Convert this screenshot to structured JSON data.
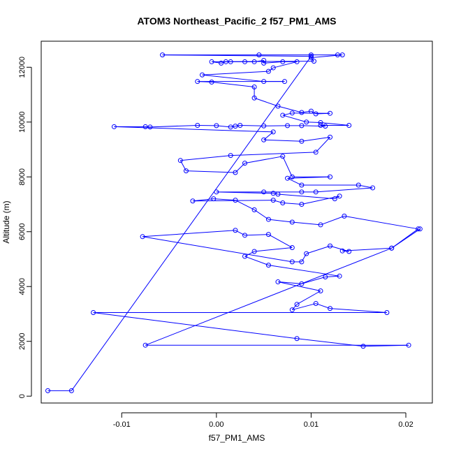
{
  "chart_data": {
    "type": "line",
    "title": "ATOM3 Northeast_Pacific_2 f57_PM1_AMS",
    "xlabel": "f57_PM1_AMS",
    "ylabel": "Altitude (m)",
    "xlim": [
      -0.0185,
      0.0228
    ],
    "ylim": [
      -250,
      12950
    ],
    "xticks": [
      -0.01,
      0.0,
      0.01,
      0.02
    ],
    "xtick_labels": [
      "-0.01",
      "0.00",
      "0.01",
      "0.02"
    ],
    "yticks": [
      0,
      2000,
      4000,
      6000,
      8000,
      10000,
      12000
    ],
    "ytick_labels": [
      "0",
      "2000",
      "4000",
      "6000",
      "8000",
      "10000",
      "12000"
    ],
    "grid": false,
    "legend": "none",
    "series": [
      {
        "color": "#0000ff",
        "marker": "open-circle",
        "points": [
          [
            -0.0178,
            200
          ],
          [
            -0.0153,
            200
          ],
          [
            0.01,
            12400
          ],
          [
            -0.0057,
            12450
          ],
          [
            0.0045,
            12450
          ],
          [
            0.01,
            12450
          ],
          [
            0.0128,
            12450
          ],
          [
            0.0133,
            12450
          ],
          [
            0.01,
            12350
          ],
          [
            0.0103,
            12220
          ],
          [
            -0.0005,
            12200
          ],
          [
            0.0005,
            12150
          ],
          [
            0.001,
            12200
          ],
          [
            0.0015,
            12200
          ],
          [
            0.003,
            12200
          ],
          [
            0.004,
            12200
          ],
          [
            0.005,
            12250
          ],
          [
            0.005,
            12150
          ],
          [
            0.007,
            12200
          ],
          [
            0.0085,
            12200
          ],
          [
            0.006,
            11980
          ],
          [
            0.0055,
            11850
          ],
          [
            -0.0015,
            11720
          ],
          [
            0.005,
            11480
          ],
          [
            0.0072,
            11480
          ],
          [
            -0.002,
            11480
          ],
          [
            -0.0005,
            11460
          ],
          [
            0.004,
            11280
          ],
          [
            0.004,
            10880
          ],
          [
            0.0065,
            10580
          ],
          [
            0.009,
            10350
          ],
          [
            0.01,
            10400
          ],
          [
            0.0105,
            10300
          ],
          [
            0.012,
            10320
          ],
          [
            0.008,
            10330
          ],
          [
            0.007,
            10250
          ],
          [
            0.0095,
            10000
          ],
          [
            0.011,
            9980
          ],
          [
            0.014,
            9880
          ],
          [
            0.011,
            9880
          ],
          [
            0.0115,
            9850
          ],
          [
            0.009,
            9870
          ],
          [
            0.0075,
            9870
          ],
          [
            0.005,
            9860
          ],
          [
            0.0025,
            9880
          ],
          [
            0.002,
            9850
          ],
          [
            0.0015,
            9820
          ],
          [
            0.0,
            9870
          ],
          [
            -0.002,
            9880
          ],
          [
            -0.007,
            9820
          ],
          [
            -0.0075,
            9830
          ],
          [
            -0.0108,
            9830
          ],
          [
            0.006,
            9640
          ],
          [
            0.005,
            9350
          ],
          [
            0.009,
            9300
          ],
          [
            0.012,
            9450
          ],
          [
            0.0105,
            8900
          ],
          [
            0.0015,
            8780
          ],
          [
            -0.0038,
            8600
          ],
          [
            -0.0032,
            8220
          ],
          [
            0.002,
            8160
          ],
          [
            0.003,
            8500
          ],
          [
            0.007,
            8750
          ],
          [
            0.008,
            8000
          ],
          [
            0.012,
            8000
          ],
          [
            0.0075,
            7950
          ],
          [
            0.009,
            7700
          ],
          [
            0.015,
            7700
          ],
          [
            0.0165,
            7600
          ],
          [
            0.0105,
            7450
          ],
          [
            0.009,
            7450
          ],
          [
            0.005,
            7450
          ],
          [
            -0.0,
            7450
          ],
          [
            0.006,
            7400
          ],
          [
            0.0065,
            7370
          ],
          [
            0.0125,
            7200
          ],
          [
            0.013,
            7300
          ],
          [
            0.009,
            7000
          ],
          [
            0.007,
            7050
          ],
          [
            0.006,
            7150
          ],
          [
            -0.0025,
            7120
          ],
          [
            -0.0003,
            7200
          ],
          [
            0.002,
            7150
          ],
          [
            0.004,
            6800
          ],
          [
            0.0055,
            6450
          ],
          [
            0.008,
            6350
          ],
          [
            0.011,
            6250
          ],
          [
            0.0135,
            6570
          ],
          [
            0.0213,
            6100
          ],
          [
            0.0185,
            5400
          ],
          [
            0.0133,
            5300
          ],
          [
            0.014,
            5280
          ],
          [
            0.012,
            5480
          ],
          [
            0.0095,
            5200
          ],
          [
            0.009,
            4900
          ],
          [
            0.008,
            4900
          ],
          [
            -0.0078,
            5820
          ],
          [
            0.002,
            6050
          ],
          [
            0.003,
            5870
          ],
          [
            0.0055,
            5900
          ],
          [
            0.008,
            5420
          ],
          [
            0.004,
            5280
          ],
          [
            0.003,
            5100
          ],
          [
            0.0055,
            4780
          ],
          [
            0.013,
            4380
          ],
          [
            0.0115,
            4350
          ],
          [
            0.009,
            4100
          ],
          [
            0.0065,
            4170
          ],
          [
            0.011,
            3840
          ],
          [
            0.0085,
            3350
          ],
          [
            0.008,
            3150
          ],
          [
            0.0105,
            3380
          ],
          [
            0.012,
            3200
          ],
          [
            0.018,
            3050
          ],
          [
            -0.013,
            3050
          ],
          [
            0.0085,
            2100
          ],
          [
            0.0155,
            1820
          ],
          [
            0.0203,
            1860
          ],
          [
            -0.0075,
            1860
          ],
          [
            0.0185,
            5400
          ],
          [
            0.0215,
            6100
          ]
        ]
      }
    ]
  }
}
